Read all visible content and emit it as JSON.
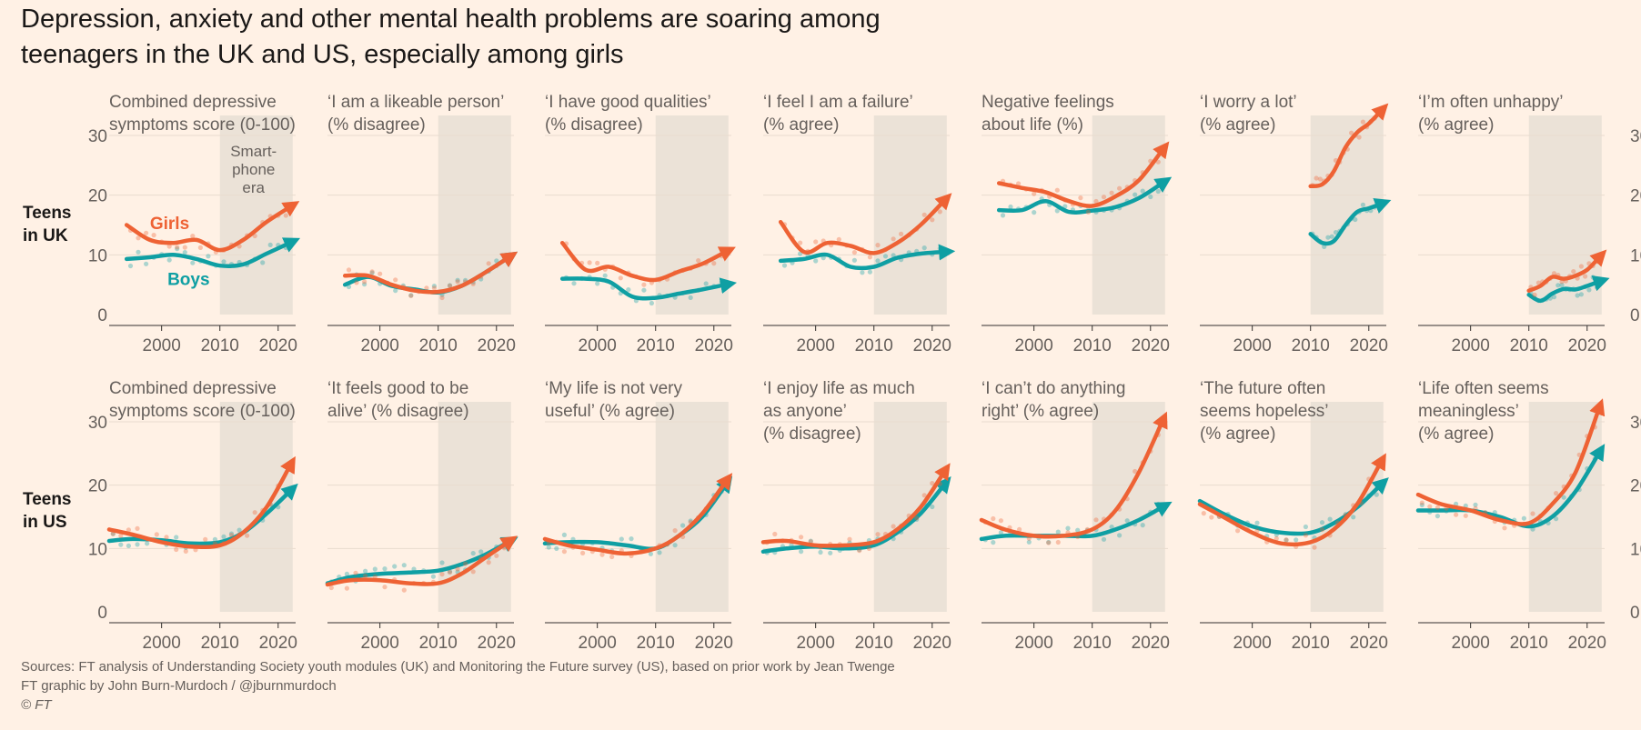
{
  "title_line1": "Depression, anxiety and other mental health problems are soaring among",
  "title_line2": "teenagers in the UK and US, especially among girls",
  "footer": {
    "sources": "Sources: FT analysis of Understanding Society youth modules (UK) and Monitoring the Future survey (US), based on prior work by Jean Twenge",
    "credit": "FT graphic by John Burn-Murdoch / @jburnmurdoch",
    "copyright": "© FT"
  },
  "colors": {
    "girls": "#ee6234",
    "boys": "#0f9fa3",
    "shade": "#ebe2d7",
    "grid": "#e9dccf",
    "axis": "#33302e"
  },
  "chart_data": {
    "type": "line",
    "x_ticks": [
      2000,
      2010,
      2020
    ],
    "x_tick_labels": [
      "2000",
      "2010",
      "2020"
    ],
    "xlim": [
      1991,
      2023
    ],
    "ylim": [
      0,
      30
    ],
    "y_ticks": [
      0,
      10,
      20,
      30
    ],
    "y_tick_labels": [
      "0",
      "10",
      "20",
      "30"
    ],
    "shaded_period": {
      "from": 2010,
      "to": 2022.5
    },
    "annotations": {
      "shade_label": [
        "Smart-",
        "phone",
        "era"
      ],
      "girls_label": "Girls",
      "boys_label": "Boys"
    },
    "rows": [
      {
        "label": [
          "Teens",
          "in UK"
        ],
        "panels": [
          {
            "title": [
              "Combined depressive",
              "symptoms score (0-100)"
            ],
            "girls": {
              "x": [
                1994,
                1998,
                2002,
                2006,
                2010,
                2014,
                2018,
                2022
              ],
              "y": [
                15,
                12.5,
                12,
                12.5,
                10.8,
                12.5,
                15.5,
                18
              ]
            },
            "boys": {
              "x": [
                1994,
                1998,
                2002,
                2006,
                2010,
                2014,
                2018,
                2022
              ],
              "y": [
                9.3,
                9.6,
                10,
                9.3,
                8.2,
                8.4,
                10.2,
                12
              ]
            }
          },
          {
            "title": [
              "‘I am a likeable person’",
              "(% disagree)"
            ],
            "girls": {
              "x": [
                1994,
                1998,
                2002,
                2006,
                2010,
                2014,
                2018,
                2022
              ],
              "y": [
                6.5,
                6.5,
                5,
                4,
                3.8,
                4.8,
                7,
                9.5
              ]
            },
            "boys": {
              "x": [
                1994,
                1998,
                2002,
                2006,
                2010,
                2014,
                2018,
                2022
              ],
              "y": [
                5,
                6.3,
                4.8,
                4.2,
                3.7,
                4.8,
                7,
                9.5
              ]
            }
          },
          {
            "title": [
              "‘I have good qualities’",
              "(% disagree)"
            ],
            "girls": {
              "x": [
                1994,
                1998,
                2002,
                2006,
                2010,
                2014,
                2018,
                2022
              ],
              "y": [
                12,
                7.5,
                8,
                6.5,
                5.8,
                7.2,
                8.5,
                10.5
              ]
            },
            "boys": {
              "x": [
                1994,
                1998,
                2002,
                2006,
                2010,
                2014,
                2018,
                2022
              ],
              "y": [
                6,
                6,
                5.5,
                3,
                2.8,
                3.5,
                4.2,
                5
              ]
            }
          },
          {
            "title": [
              "‘I feel I am a failure’",
              "(% agree)"
            ],
            "girls": {
              "x": [
                1994,
                1998,
                2002,
                2006,
                2010,
                2014,
                2018,
                2022
              ],
              "y": [
                15.5,
                10.5,
                12,
                11.5,
                10.3,
                12,
                15,
                19
              ]
            },
            "boys": {
              "x": [
                1994,
                1998,
                2002,
                2006,
                2010,
                2014,
                2018,
                2022
              ],
              "y": [
                9,
                9.3,
                10,
                8,
                8,
                9.5,
                10.2,
                10.5
              ]
            }
          },
          {
            "title": [
              "Negative feelings",
              "about life (%)"
            ],
            "girls": {
              "x": [
                1994,
                1998,
                2002,
                2006,
                2010,
                2014,
                2018,
                2022
              ],
              "y": [
                22,
                21.2,
                20.5,
                19,
                18.2,
                19.8,
                22.5,
                27.5
              ]
            },
            "boys": {
              "x": [
                1994,
                1998,
                2002,
                2006,
                2010,
                2014,
                2018,
                2022
              ],
              "y": [
                17.5,
                17.5,
                19,
                17.2,
                17.4,
                18,
                19.5,
                22
              ]
            }
          },
          {
            "title": [
              "‘I worry a lot’",
              "(% agree)"
            ],
            "girls": {
              "x": [
                2010,
                2012,
                2014,
                2016,
                2018,
                2020,
                2022
              ],
              "y": [
                21.5,
                21.8,
                24,
                28,
                30.5,
                32,
                34
              ]
            },
            "boys": {
              "x": [
                2010,
                2012,
                2014,
                2016,
                2018,
                2020,
                2022
              ],
              "y": [
                13.5,
                12,
                12.3,
                15,
                17.2,
                17.8,
                18.5
              ]
            }
          },
          {
            "title": [
              "‘I’m often unhappy’",
              "(% agree)"
            ],
            "girls": {
              "x": [
                2010,
                2012,
                2014,
                2016,
                2018,
                2020,
                2022
              ],
              "y": [
                4,
                4.8,
                6.3,
                6,
                6.5,
                7.5,
                9.5
              ]
            },
            "boys": {
              "x": [
                2010,
                2012,
                2014,
                2016,
                2018,
                2020,
                2022
              ],
              "y": [
                3.3,
                2.3,
                3.5,
                4.3,
                4.2,
                4.8,
                5.5
              ]
            }
          }
        ]
      },
      {
        "label": [
          "Teens",
          "in US"
        ],
        "panels": [
          {
            "title": [
              "Combined depressive",
              "symptoms score (0-100)"
            ],
            "girls": {
              "x": [
                1991,
                1995,
                2000,
                2005,
                2010,
                2014,
                2018,
                2022
              ],
              "y": [
                13,
                12.2,
                11,
                10.3,
                10.5,
                12.5,
                16.5,
                23
              ]
            },
            "boys": {
              "x": [
                1991,
                1995,
                2000,
                2005,
                2010,
                2014,
                2018,
                2022
              ],
              "y": [
                11.2,
                11.5,
                11.3,
                10.8,
                11,
                12.5,
                15.5,
                19
              ]
            }
          },
          {
            "title": [
              "‘It feels good to be",
              "alive’ (% disagree)"
            ],
            "girls": {
              "x": [
                1991,
                1995,
                2000,
                2005,
                2010,
                2014,
                2018,
                2022
              ],
              "y": [
                4.3,
                5,
                5,
                4.5,
                4.5,
                6,
                8.5,
                11
              ]
            },
            "boys": {
              "x": [
                1991,
                1995,
                2000,
                2005,
                2010,
                2014,
                2018,
                2022
              ],
              "y": [
                4.5,
                5.5,
                6,
                6.2,
                6.5,
                7.5,
                9,
                11
              ]
            }
          },
          {
            "title": [
              "‘My life is not very",
              "useful’ (% agree)"
            ],
            "girls": {
              "x": [
                1991,
                1995,
                2000,
                2005,
                2010,
                2014,
                2018,
                2022
              ],
              "y": [
                11.5,
                10.5,
                9.8,
                9.2,
                10,
                12,
                15.5,
                20.5
              ]
            },
            "boys": {
              "x": [
                1991,
                1995,
                2000,
                2005,
                2010,
                2014,
                2018,
                2022
              ],
              "y": [
                10.8,
                11,
                11,
                10.5,
                10,
                12,
                15,
                20
              ]
            }
          },
          {
            "title": [
              "‘I enjoy life as much",
              "as anyone’",
              "(% disagree)"
            ],
            "girls": {
              "x": [
                1991,
                1995,
                2000,
                2005,
                2010,
                2014,
                2018,
                2022
              ],
              "y": [
                11,
                11.2,
                10.5,
                10.5,
                11,
                13,
                16.5,
                22
              ]
            },
            "boys": {
              "x": [
                1991,
                1995,
                2000,
                2005,
                2010,
                2014,
                2018,
                2022
              ],
              "y": [
                9.5,
                10,
                10.3,
                10,
                10.5,
                12.5,
                15.5,
                20
              ]
            }
          },
          {
            "title": [
              "‘I can’t do anything",
              "right’ (% agree)"
            ],
            "girls": {
              "x": [
                1991,
                1995,
                2000,
                2005,
                2010,
                2014,
                2018,
                2022
              ],
              "y": [
                14.5,
                13,
                12,
                12,
                13,
                16,
                22,
                30
              ]
            },
            "boys": {
              "x": [
                1991,
                1995,
                2000,
                2005,
                2010,
                2014,
                2018,
                2022
              ],
              "y": [
                11.5,
                12,
                12,
                12,
                12,
                13,
                14.5,
                16.5
              ]
            }
          },
          {
            "title": [
              "‘The future often",
              "seems hopeless’",
              "(% agree)"
            ],
            "girls": {
              "x": [
                1991,
                1995,
                2000,
                2005,
                2010,
                2014,
                2018,
                2022
              ],
              "y": [
                17,
                15,
                12.5,
                10.8,
                11,
                13,
                17,
                23.5
              ]
            },
            "boys": {
              "x": [
                1991,
                1995,
                2000,
                2005,
                2010,
                2014,
                2018,
                2022
              ],
              "y": [
                17.5,
                15.5,
                13.5,
                12.5,
                12.5,
                14,
                16.5,
                20
              ]
            }
          },
          {
            "title": [
              "‘Life often seems",
              "meaningless’",
              "(% agree)"
            ],
            "girls": {
              "x": [
                1991,
                1995,
                2000,
                2005,
                2010,
                2014,
                2018,
                2022
              ],
              "y": [
                18.5,
                17,
                16,
                14.5,
                14,
                17,
                22,
                32
              ]
            },
            "boys": {
              "x": [
                1991,
                1995,
                2000,
                2005,
                2010,
                2014,
                2018,
                2022
              ],
              "y": [
                16,
                16,
                16,
                15,
                13.5,
                15,
                19,
                25
              ]
            }
          }
        ]
      }
    ]
  }
}
